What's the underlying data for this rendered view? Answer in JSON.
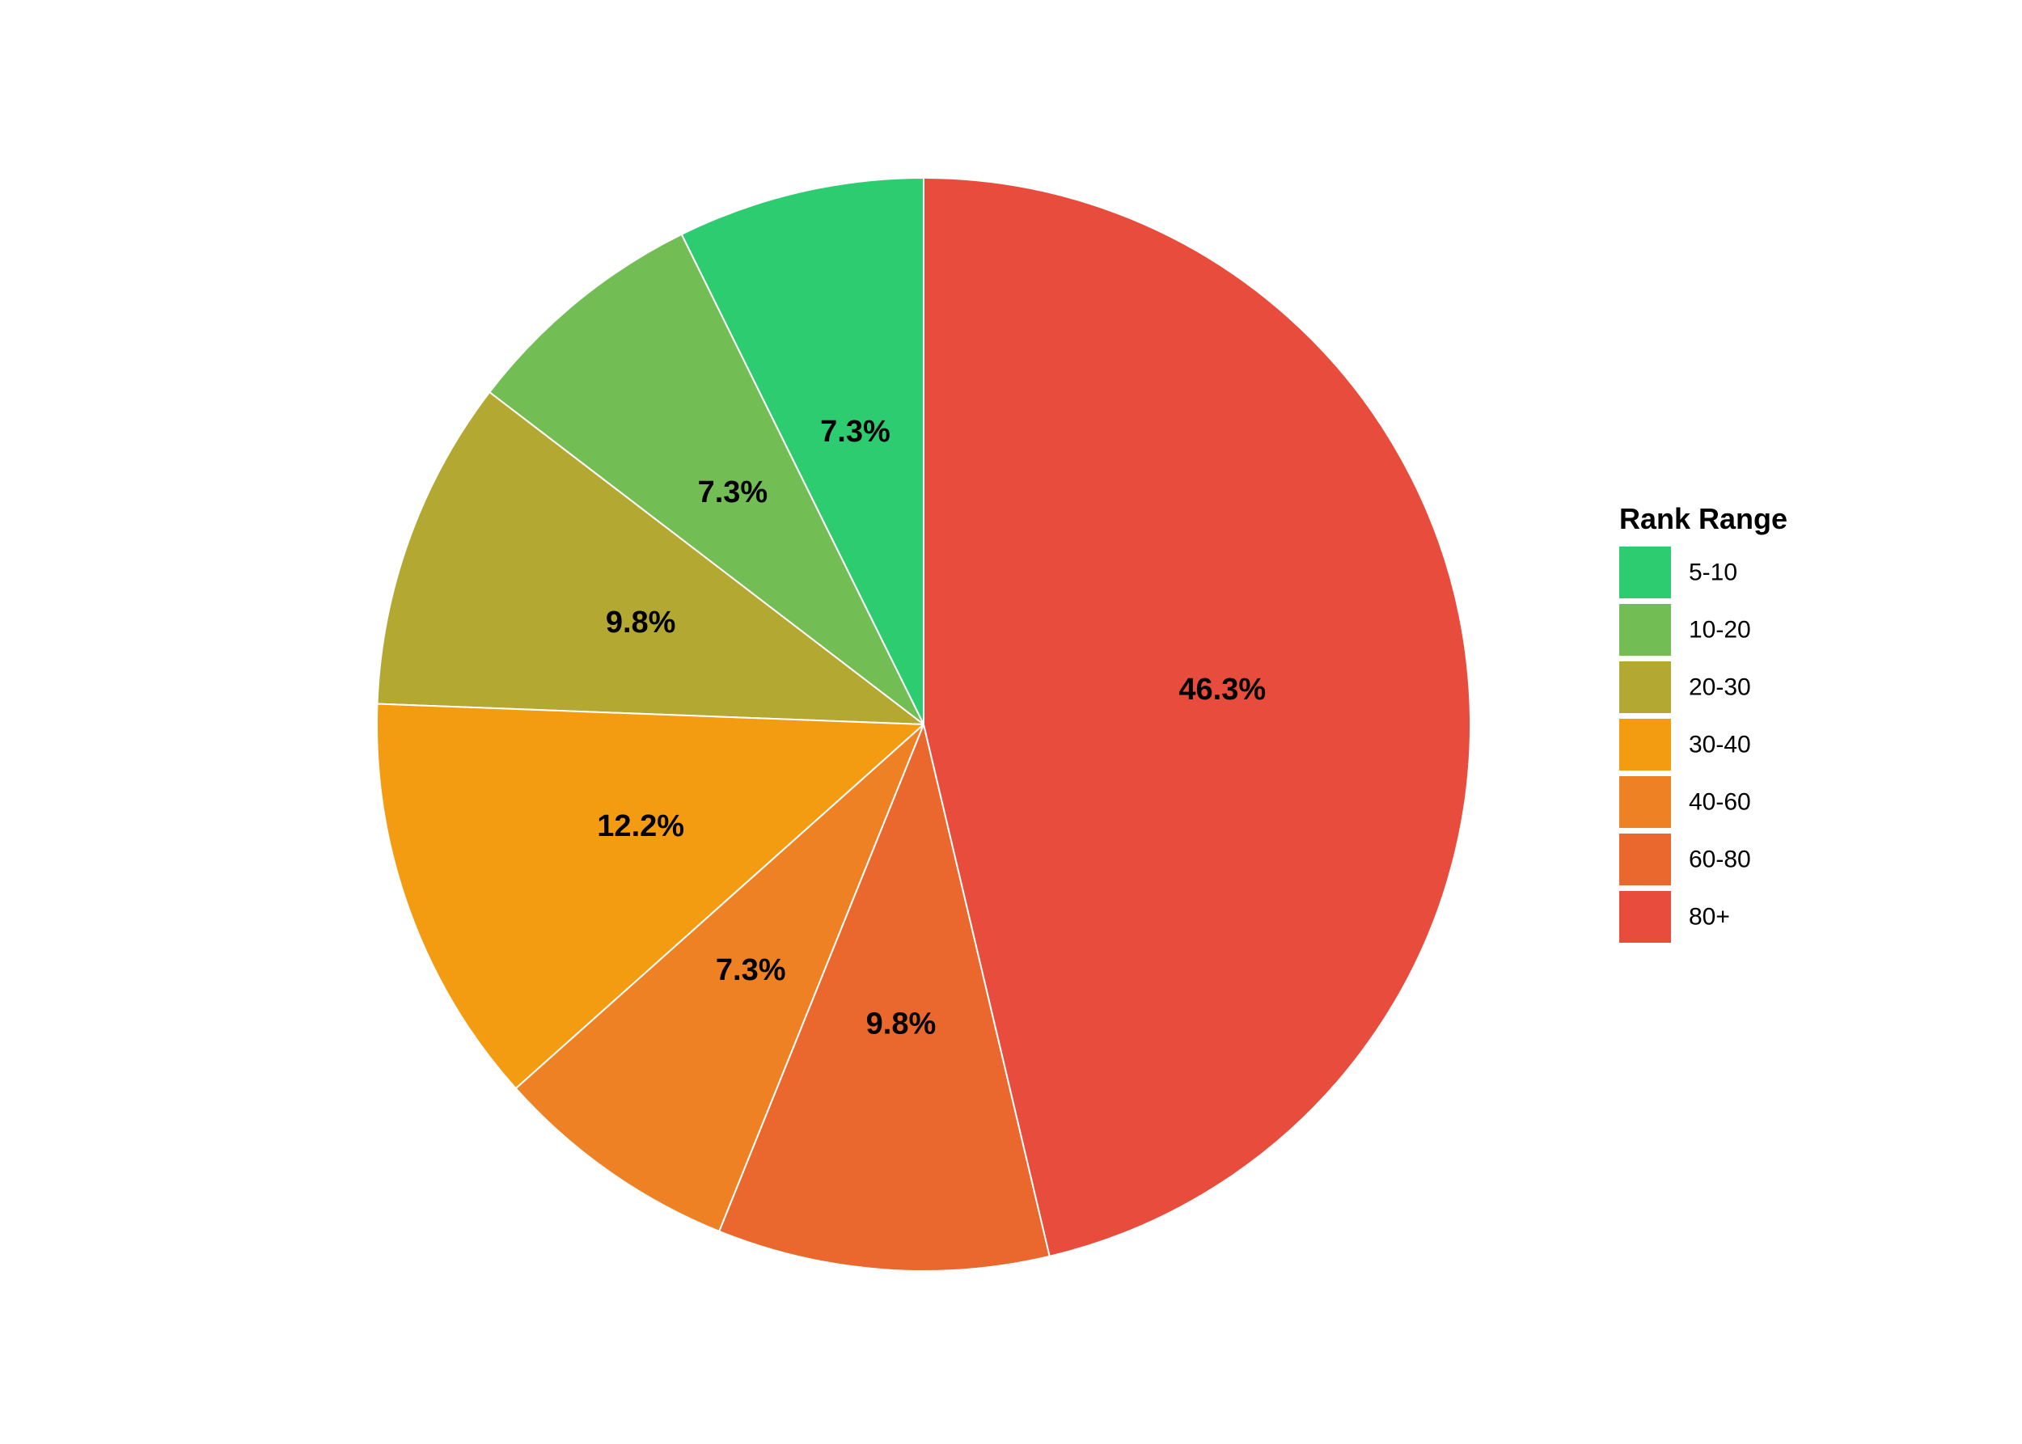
{
  "chart_data": {
    "type": "pie",
    "legend": {
      "title": "Rank Range",
      "placement": "right"
    },
    "start_angle_deg": 0,
    "direction": "counterclockwise",
    "slices": [
      {
        "label": "5-10",
        "value": 7.3,
        "value_label": "7.3%",
        "color": "#2ECC71"
      },
      {
        "label": "10-20",
        "value": 7.3,
        "value_label": "7.3%",
        "color": "#72BE54"
      },
      {
        "label": "20-30",
        "value": 9.8,
        "value_label": "9.8%",
        "color": "#B3A932"
      },
      {
        "label": "30-40",
        "value": 12.2,
        "value_label": "12.2%",
        "color": "#F39C12"
      },
      {
        "label": "40-60",
        "value": 7.3,
        "value_label": "7.3%",
        "color": "#EE8123"
      },
      {
        "label": "60-80",
        "value": 9.8,
        "value_label": "9.8%",
        "color": "#EA672E"
      },
      {
        "label": "80+",
        "value": 46.3,
        "value_label": "46.3%",
        "color": "#E74C3C"
      }
    ],
    "slice_border_color": "#FFFFFF"
  }
}
